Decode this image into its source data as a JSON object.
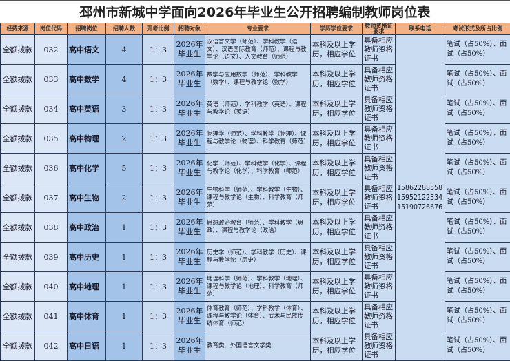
{
  "title": "邳州市新城中学面向2026年毕业生公开招聘编制教师岗位表",
  "headers": [
    "经费来源",
    "岗位代码",
    "招聘岗位",
    "招聘人数",
    "开考比例",
    "招聘对象",
    "专业要求",
    "学历学位要求",
    "教师资格证要求",
    "联系电话",
    "考试形式及所占比例"
  ],
  "phone": "15862288558 15952122334 15190726676",
  "rows": [
    {
      "fund": "全额拨款",
      "code": "032",
      "post": "高中语文",
      "count": "4",
      "ratio": "1：3",
      "target": "2026年毕业生",
      "major": "汉语言文学（师范）、学科教学（语文）、汉语国际教育（师范）、课程与教学论（语文）、人文教育（师范）",
      "edu": "本科及以上学历，相应学位",
      "cert": "具备相应教师资格证书",
      "exam": "笔试（占50%）、面试（占50%）"
    },
    {
      "fund": "全额拨款",
      "code": "033",
      "post": "高中数学",
      "count": "4",
      "ratio": "1：3",
      "target": "2026年毕业生",
      "major": "数学与应用数学（师范）、学科教学（数学）、课程与教学论（数学）",
      "edu": "本科及以上学历，相应学位",
      "cert": "具备相应教师资格证书",
      "exam": "笔试（占50%）、面试（占50%）"
    },
    {
      "fund": "全额拨款",
      "code": "034",
      "post": "高中英语",
      "count": "3",
      "ratio": "1：3",
      "target": "2026年毕业生",
      "major": "英语（师范）、学科教学（英语）、课程与教学论（英语）",
      "edu": "本科及以上学历，相应学位",
      "cert": "具备相应教师资格证书",
      "exam": "笔试（占50%）、面试（占50%）"
    },
    {
      "fund": "全额拨款",
      "code": "035",
      "post": "高中物理",
      "count": "2",
      "ratio": "1：3",
      "target": "2026年毕业生",
      "major": "物理学（师范）、学科教学（物理）、课程与教学论（物理）、科学教育（师范）",
      "edu": "本科及以上学历，相应学位",
      "cert": "具备相应教师资格证书",
      "exam": "笔试（占50%）、面试（占50%）"
    },
    {
      "fund": "全额拨款",
      "code": "036",
      "post": "高中化学",
      "count": "5",
      "ratio": "1：3",
      "target": "2026年毕业生",
      "major": "化学（师范）、学科教学（化学）、课程与教学论（化学）、科学教育（师范）",
      "edu": "本科及以上学历，相应学位",
      "cert": "具备相应教师资格证书",
      "exam": "笔试（占50%）、面试（占50%）"
    },
    {
      "fund": "全额拨款",
      "code": "037",
      "post": "高中生物",
      "count": "2",
      "ratio": "1：3",
      "target": "2026年毕业生",
      "major": "生物科学（师范）、学科教学（生物）、课程与教学论（生物）、科学教育（师范）",
      "edu": "本科及以上学历，相应学位",
      "cert": "具备相应教师资格证书",
      "exam": "笔试（占50%）、面试（占50%）"
    },
    {
      "fund": "全额拨款",
      "code": "038",
      "post": "高中政治",
      "count": "1",
      "ratio": "1：3",
      "target": "2026年毕业生",
      "major": "思想政治教育（师范）、学科教学（思政）、课程与教学论（政治）",
      "edu": "本科及以上学历，相应学位",
      "cert": "具备相应教师资格证书",
      "exam": "笔试（占50%）、面试（占50%）"
    },
    {
      "fund": "全额拨款",
      "code": "039",
      "post": "高中历史",
      "count": "1",
      "ratio": "1：3",
      "target": "2026年毕业生",
      "major": "历史学（师范）、学科教学（历史）、课程与教学论（历史）",
      "edu": "本科及以上学历，相应学位",
      "cert": "具备相应教师资格证书",
      "exam": "笔试（占50%）、面试（占50%）"
    },
    {
      "fund": "全额拨款",
      "code": "040",
      "post": "高中地理",
      "count": "1",
      "ratio": "1：3",
      "target": "2026年毕业生",
      "major": "地理科学（师范）、学科教学（地理）、课程与教学论（地理）、科学教育（师范）",
      "edu": "本科及以上学历，相应学位",
      "cert": "具备相应教师资格证书",
      "exam": "笔试（占50%）、面试（占50%）"
    },
    {
      "fund": "全额拨款",
      "code": "041",
      "post": "高中体育",
      "count": "1",
      "ratio": "1：3",
      "target": "2026年毕业生",
      "major": "体育教育（师范）、学科教学（体育）、课程与教学论（体育）、武术与民族传统体育（师范）",
      "edu": "本科及以上学历，相应学位",
      "cert": "具备相应教师资格证书",
      "exam": "笔试（占50%）、面试（占50%）"
    },
    {
      "fund": "全额拨款",
      "code": "042",
      "post": "高中日语",
      "count": "1",
      "ratio": "1：3",
      "target": "2026年毕业生",
      "major": "教育类、外国语言文学类",
      "edu": "本科及以上学历，相应学位",
      "cert": "具备相应教师资格证书",
      "exam": "笔试（占50%）、面试（占50%）"
    }
  ]
}
